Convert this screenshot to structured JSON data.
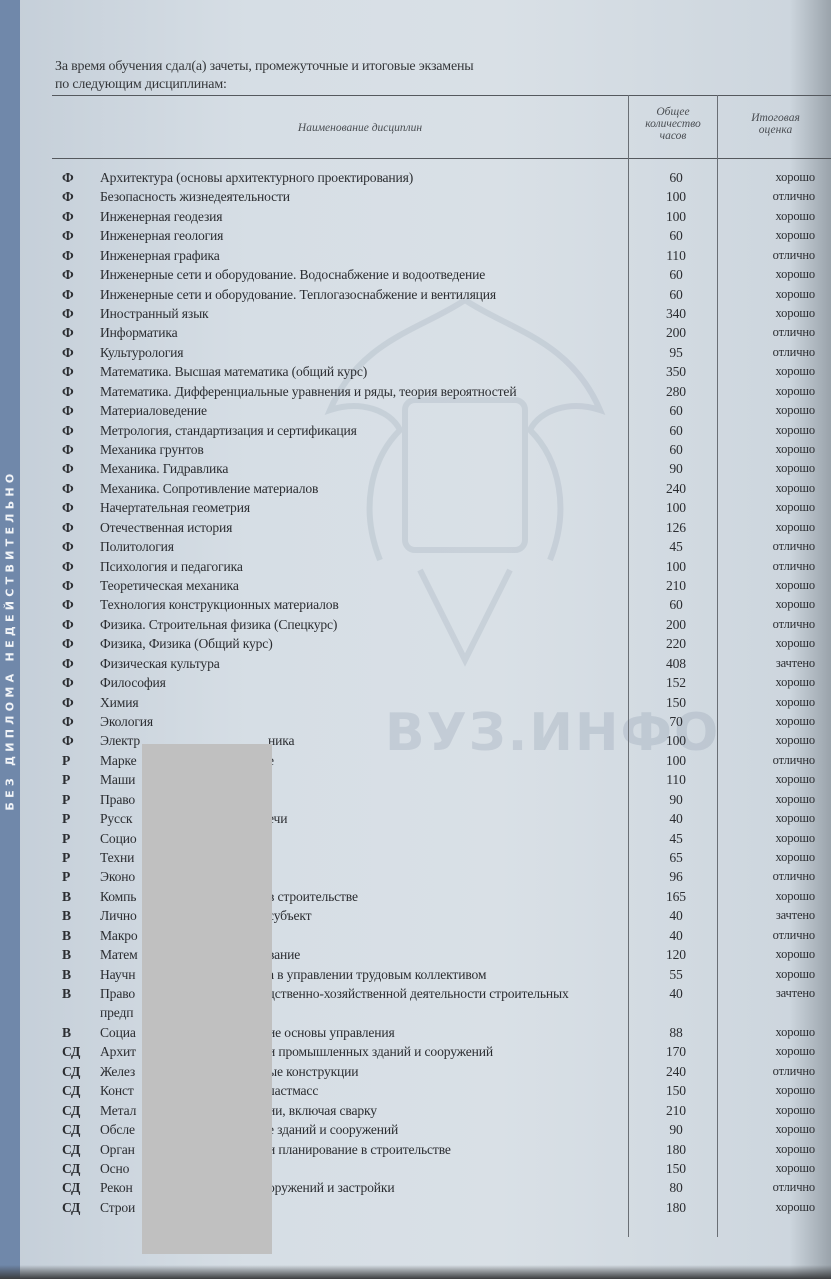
{
  "side_strip": "БЕЗ ДИПЛОМА НЕДЕЙСТВИТЕЛЬНО",
  "watermark": "ВУЗ.ИНФО",
  "intro": [
    "За время обучения сдал(а) зачеты, промежуточные и итоговые экзамены",
    "по следующим дисциплинам:"
  ],
  "headers": {
    "name": "Наименование дисциплин",
    "hours": [
      "Общее",
      "количество",
      "часов"
    ],
    "grade": [
      "Итоговая",
      "оценка"
    ]
  },
  "rows": [
    {
      "code": "Ф",
      "name": "Архитектура (основы архитектурного проектирования)",
      "hours": "60",
      "grade": "хорошо"
    },
    {
      "code": "Ф",
      "name": "Безопасность жизнедеятельности",
      "hours": "100",
      "grade": "отлично"
    },
    {
      "code": "Ф",
      "name": "Инженерная геодезия",
      "hours": "100",
      "grade": "хорошо"
    },
    {
      "code": "Ф",
      "name": "Инженерная геология",
      "hours": "60",
      "grade": "хорошо"
    },
    {
      "code": "Ф",
      "name": "Инженерная графика",
      "hours": "110",
      "grade": "отлично"
    },
    {
      "code": "Ф",
      "name": "Инженерные сети и оборудование. Водоснабжение и водоотведение",
      "hours": "60",
      "grade": "хорошо"
    },
    {
      "code": "Ф",
      "name": "Инженерные сети и оборудование. Теплогазоснабжение и вентиляция",
      "hours": "60",
      "grade": "хорошо"
    },
    {
      "code": "Ф",
      "name": "Иностранный язык",
      "hours": "340",
      "grade": "хорошо"
    },
    {
      "code": "Ф",
      "name": "Информатика",
      "hours": "200",
      "grade": "отлично"
    },
    {
      "code": "Ф",
      "name": "Культурология",
      "hours": "95",
      "grade": "отлично"
    },
    {
      "code": "Ф",
      "name": "Математика. Высшая математика (общий курс)",
      "hours": "350",
      "grade": "хорошо"
    },
    {
      "code": "Ф",
      "name": "Математика. Дифференциальные уравнения и ряды, теория вероятностей",
      "hours": "280",
      "grade": "хорошо"
    },
    {
      "code": "Ф",
      "name": "Материаловедение",
      "hours": "60",
      "grade": "хорошо"
    },
    {
      "code": "Ф",
      "name": "Метрология, стандартизация и сертификация",
      "hours": "60",
      "grade": "хорошо"
    },
    {
      "code": "Ф",
      "name": "Механика грунтов",
      "hours": "60",
      "grade": "хорошо"
    },
    {
      "code": "Ф",
      "name": "Механика. Гидравлика",
      "hours": "90",
      "grade": "хорошо"
    },
    {
      "code": "Ф",
      "name": "Механика. Сопротивление материалов",
      "hours": "240",
      "grade": "хорошо"
    },
    {
      "code": "Ф",
      "name": "Начертательная геометрия",
      "hours": "100",
      "grade": "хорошо"
    },
    {
      "code": "Ф",
      "name": "Отечественная история",
      "hours": "126",
      "grade": "хорошо"
    },
    {
      "code": "Ф",
      "name": "Политология",
      "hours": "45",
      "grade": "отлично"
    },
    {
      "code": "Ф",
      "name": "Психология и педагогика",
      "hours": "100",
      "grade": "отлично"
    },
    {
      "code": "Ф",
      "name": "Теоретическая механика",
      "hours": "210",
      "grade": "хорошо"
    },
    {
      "code": "Ф",
      "name": "Технология конструкционных материалов",
      "hours": "60",
      "grade": "хорошо"
    },
    {
      "code": "Ф",
      "name": "Физика. Строительная физика (Спецкурс)",
      "hours": "200",
      "grade": "отлично"
    },
    {
      "code": "Ф",
      "name": "Физика, Физика (Общий курс)",
      "hours": "220",
      "grade": "хорошо"
    },
    {
      "code": "Ф",
      "name": "Физическая культура",
      "hours": "408",
      "grade": "зачтено"
    },
    {
      "code": "Ф",
      "name": "Философия",
      "hours": "152",
      "grade": "хорошо"
    },
    {
      "code": "Ф",
      "name": "Химия",
      "hours": "150",
      "grade": "хорошо"
    },
    {
      "code": "Ф",
      "name": "Экология",
      "hours": "70",
      "grade": "хорошо"
    },
    {
      "code": "Ф",
      "name": "Электр",
      "tail": "ника",
      "hours": "100",
      "grade": "хорошо"
    },
    {
      "code": "Р",
      "name": "Марке",
      "tail": "е",
      "hours": "100",
      "grade": "отлично"
    },
    {
      "code": "Р",
      "name": "Маши",
      "tail": "",
      "hours": "110",
      "grade": "хорошо"
    },
    {
      "code": "Р",
      "name": "Право",
      "tail": "",
      "hours": "90",
      "grade": "хорошо"
    },
    {
      "code": "Р",
      "name": "Русск",
      "tail": "ечи",
      "hours": "40",
      "grade": "хорошо"
    },
    {
      "code": "Р",
      "name": "Социо",
      "tail": "",
      "hours": "45",
      "grade": "хорошо"
    },
    {
      "code": "Р",
      "name": "Техни",
      "tail": "",
      "hours": "65",
      "grade": "хорошо"
    },
    {
      "code": "Р",
      "name": "Эконо",
      "tail": "",
      "hours": "96",
      "grade": "отлично"
    },
    {
      "code": "В",
      "name": "Компь",
      "tail": "в строительстве",
      "hours": "165",
      "grade": "хорошо"
    },
    {
      "code": "В",
      "name": "Лично",
      "tail": "субъект",
      "hours": "40",
      "grade": "зачтено"
    },
    {
      "code": "В",
      "name": "Макро",
      "tail": "",
      "hours": "40",
      "grade": "отлично"
    },
    {
      "code": "В",
      "name": "Матем",
      "tail": "вание",
      "hours": "120",
      "grade": "хорошо"
    },
    {
      "code": "В",
      "name": "Научн",
      "tail": "а в управлении трудовым коллективом",
      "hours": "55",
      "grade": "хорошо"
    },
    {
      "code": "В",
      "name": "Право",
      "tail": "дственно-хозяйственной деятельности строительных",
      "cont": "предп",
      "hours": "40",
      "grade": "зачтено"
    },
    {
      "code": "В",
      "name": "Социа",
      "tail": "ие основы управления",
      "hours": "88",
      "grade": "хорошо"
    },
    {
      "code": "СД",
      "name": "Архит",
      "tail": "и промышленных зданий и сооружений",
      "hours": "170",
      "grade": "хорошо"
    },
    {
      "code": "СД",
      "name": "Желез",
      "tail": "ые конструкции",
      "hours": "240",
      "grade": "отлично"
    },
    {
      "code": "СД",
      "name": "Конст",
      "tail": "ластмасс",
      "hours": "150",
      "grade": "хорошо"
    },
    {
      "code": "СД",
      "name": "Метал",
      "tail": "ии, включая сварку",
      "hours": "210",
      "grade": "хорошо"
    },
    {
      "code": "СД",
      "name": "Обсле",
      "tail": "е зданий и сооружений",
      "hours": "90",
      "grade": "хорошо"
    },
    {
      "code": "СД",
      "name": "Орган",
      "tail": "и планирование в строительстве",
      "hours": "180",
      "grade": "хорошо"
    },
    {
      "code": "СД",
      "name": "Осно",
      "tail": "",
      "hours": "150",
      "grade": "хорошо"
    },
    {
      "code": "СД",
      "name": "Рекон",
      "tail": "оружений и застройки",
      "hours": "80",
      "grade": "отлично"
    },
    {
      "code": "СД",
      "name": "Строи",
      "tail": "",
      "hours": "180",
      "grade": "хорошо"
    }
  ]
}
